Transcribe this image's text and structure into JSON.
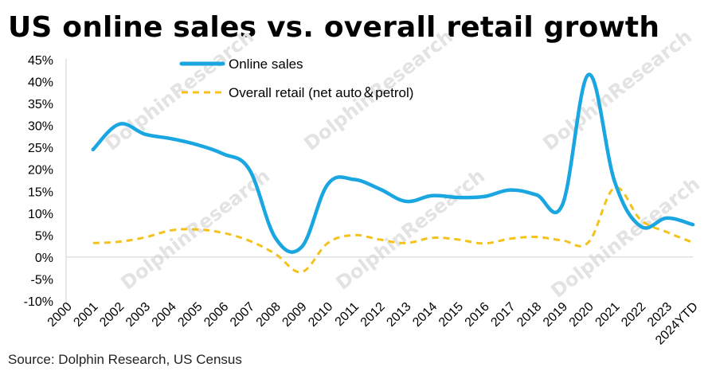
{
  "title": "US online sales vs. overall retail growth",
  "source": "Source: Dolphin Research, US Census",
  "watermark": "DolphinResearch",
  "chart_data": {
    "type": "line",
    "title": "US online sales vs. overall retail growth",
    "categories": [
      "2000",
      "2001",
      "2002",
      "2003",
      "2004",
      "2005",
      "2006",
      "2007",
      "2008",
      "2009",
      "2010",
      "2011",
      "2012",
      "2013",
      "2014",
      "2015",
      "2016",
      "2017",
      "2018",
      "2019",
      "2020",
      "2021",
      "2022",
      "2023",
      "2024YTD"
    ],
    "ylim": [
      -10,
      45
    ],
    "yticks": [
      -10,
      -5,
      0,
      5,
      10,
      15,
      20,
      25,
      30,
      35,
      40,
      45
    ],
    "ytick_labels": [
      "-10%",
      "-5%",
      "0%",
      "5%",
      "10%",
      "15%",
      "20%",
      "25%",
      "30%",
      "35%",
      "40%",
      "45%"
    ],
    "legend_position": "top",
    "series": [
      {
        "name": "Online sales",
        "color": "#1aa6e0",
        "style": "solid",
        "values": [
          null,
          24.5,
          30.3,
          28.0,
          27.0,
          25.6,
          23.5,
          19.9,
          4.3,
          2.3,
          16.6,
          17.7,
          15.5,
          12.7,
          14.0,
          13.6,
          13.8,
          15.3,
          14.2,
          12.0,
          41.6,
          17.2,
          7.0,
          8.9,
          7.4
        ]
      },
      {
        "name": "Overall retail (net auto＆petrol)",
        "color": "#f4c21b",
        "style": "dashed",
        "values": [
          null,
          3.2,
          3.5,
          4.5,
          6.1,
          6.3,
          5.5,
          3.7,
          0.7,
          -3.4,
          3.2,
          5.0,
          4.0,
          3.2,
          4.4,
          4.0,
          3.1,
          4.2,
          4.6,
          3.8,
          3.4,
          15.8,
          8.5,
          5.7,
          3.3
        ]
      }
    ]
  }
}
